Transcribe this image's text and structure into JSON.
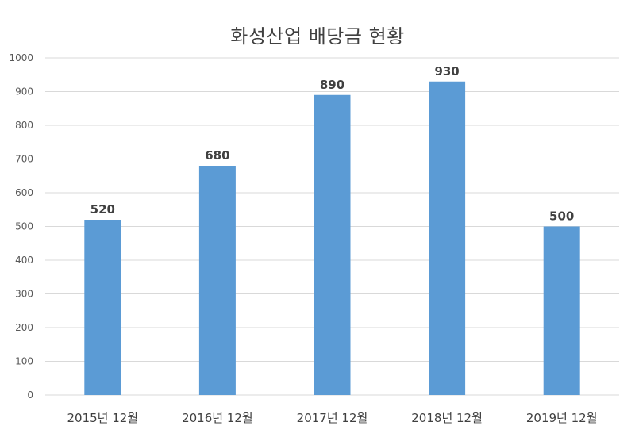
{
  "chart_data": {
    "type": "bar",
    "title": "화성산업 배당금 현황",
    "categories": [
      "2015년 12월",
      "2016년 12월",
      "2017년 12월",
      "2018년 12월",
      "2019년 12월"
    ],
    "series": [
      {
        "values": [
          520,
          680,
          890,
          930,
          500
        ],
        "color": "#5B9BD5"
      }
    ],
    "ylim": [
      0,
      1000
    ],
    "yticks": [
      0,
      100,
      200,
      300,
      400,
      500,
      600,
      700,
      800,
      900,
      1000
    ],
    "grid": true,
    "data_labels": true,
    "gridline_color": "#D9D9D9"
  }
}
